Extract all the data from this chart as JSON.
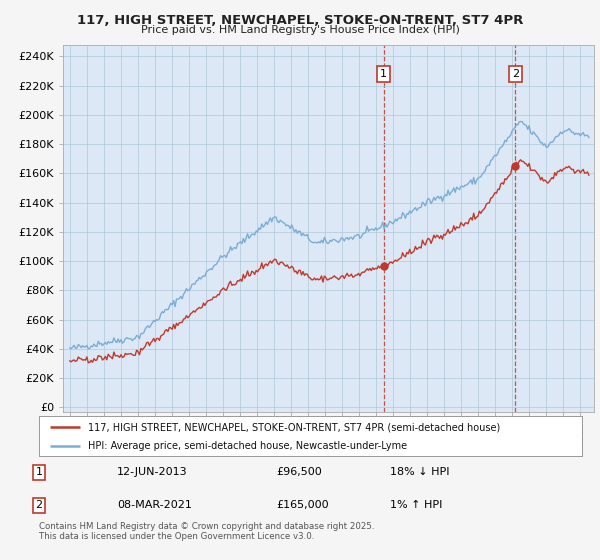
{
  "title_line1": "117, HIGH STREET, NEWCHAPEL, STOKE-ON-TRENT, ST7 4PR",
  "title_line2": "Price paid vs. HM Land Registry's House Price Index (HPI)",
  "ylabel_ticks": [
    "£0",
    "£20K",
    "£40K",
    "£60K",
    "£80K",
    "£100K",
    "£120K",
    "£140K",
    "£160K",
    "£180K",
    "£200K",
    "£220K",
    "£240K"
  ],
  "ytick_values": [
    0,
    20000,
    40000,
    60000,
    80000,
    100000,
    120000,
    140000,
    160000,
    180000,
    200000,
    220000,
    240000
  ],
  "hpi_color": "#7aadd4",
  "price_color": "#c0392b",
  "vline_color": "#c0392b",
  "fig_bg_color": "#f5f5f5",
  "plot_bg_color": "#dce8f5",
  "grid_color": "#b0c8d8",
  "legend_label_price": "117, HIGH STREET, NEWCHAPEL, STOKE-ON-TRENT, ST7 4PR (semi-detached house)",
  "legend_label_hpi": "HPI: Average price, semi-detached house, Newcastle-under-Lyme",
  "annotation1_date": "12-JUN-2013",
  "annotation1_price": "£96,500",
  "annotation1_hpi": "18% ↓ HPI",
  "annotation2_date": "08-MAR-2021",
  "annotation2_price": "£165,000",
  "annotation2_hpi": "1% ↑ HPI",
  "footer": "Contains HM Land Registry data © Crown copyright and database right 2025.\nThis data is licensed under the Open Government Licence v3.0.",
  "sale1_t": 2013.44,
  "sale1_p": 96500,
  "sale2_t": 2021.18,
  "sale2_p": 165000
}
